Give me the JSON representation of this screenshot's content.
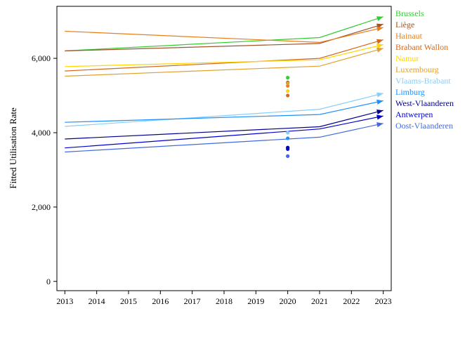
{
  "chart_data": {
    "type": "line",
    "title": "",
    "xlabel": "",
    "ylabel": "Fitted Utilisation Rate",
    "xlim": [
      2012.75,
      2023.25
    ],
    "ylim": [
      -250,
      7400
    ],
    "xticks": [
      "2013",
      "2014",
      "2015",
      "2016",
      "2017",
      "2018",
      "2019",
      "2020",
      "2021",
      "2022",
      "2023"
    ],
    "yticks": [
      "0",
      "2,000",
      "4,000",
      "6,000"
    ],
    "ytick_values": [
      0,
      2000,
      4000,
      6000
    ],
    "grid": false,
    "legend": "right, labels at series end",
    "x": [
      2013,
      2021,
      2023
    ],
    "series": [
      {
        "name": "Brussels",
        "color": "#33cc33",
        "values": [
          6200,
          6560,
          7120
        ],
        "points_2020": [
          5480
        ]
      },
      {
        "name": "Liège",
        "color": "#a0522d",
        "values": [
          6200,
          6400,
          6920
        ],
        "points_2020": [
          5350
        ]
      },
      {
        "name": "Hainaut",
        "color": "#e8801a",
        "values": [
          6730,
          6430,
          6830
        ],
        "points_2020": [
          5260
        ]
      },
      {
        "name": "Brabant Wallon",
        "color": "#d2691e",
        "values": [
          5660,
          6000,
          6500
        ],
        "points_2020": [
          5000
        ]
      },
      {
        "name": "Namur",
        "color": "#ffd700",
        "values": [
          5780,
          5960,
          6370
        ],
        "points_2020": [
          5120
        ]
      },
      {
        "name": "Luxembourg",
        "color": "#e0a030",
        "values": [
          5520,
          5790,
          6270
        ],
        "points_2020": [
          5330
        ]
      },
      {
        "name": "Vlaams-Brabant",
        "color": "#87cefa",
        "values": [
          4170,
          4630,
          5060
        ],
        "points_2020": [
          4000
        ]
      },
      {
        "name": "Limburg",
        "color": "#1e90ff",
        "values": [
          4280,
          4490,
          4860
        ],
        "points_2020": [
          3850
        ]
      },
      {
        "name": "West-Vlaanderen",
        "color": "#00008b",
        "values": [
          3830,
          4160,
          4600
        ],
        "points_2020": [
          3600
        ]
      },
      {
        "name": "Antwerpen",
        "color": "#0000cd",
        "values": [
          3590,
          4100,
          4450
        ],
        "points_2020": [
          3560
        ]
      },
      {
        "name": "Oost-Vlaanderen",
        "color": "#4169e1",
        "values": [
          3480,
          3880,
          4250
        ],
        "points_2020": [
          3370
        ]
      }
    ]
  }
}
